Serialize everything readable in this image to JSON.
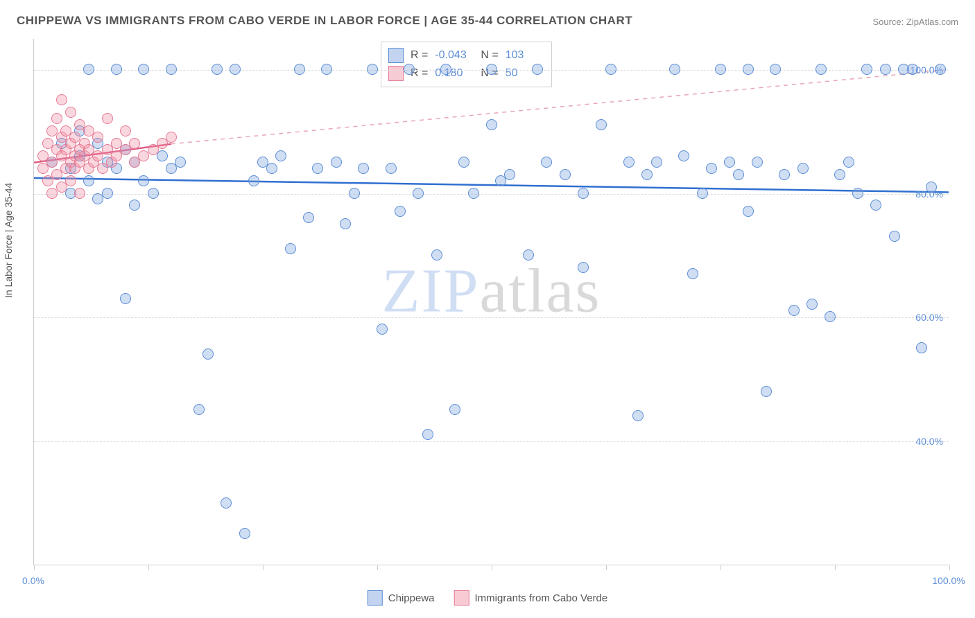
{
  "title": "CHIPPEWA VS IMMIGRANTS FROM CABO VERDE IN LABOR FORCE | AGE 35-44 CORRELATION CHART",
  "source": "Source: ZipAtlas.com",
  "y_axis_label": "In Labor Force | Age 35-44",
  "watermark": {
    "part1": "ZIP",
    "part2": "atlas"
  },
  "chart": {
    "type": "scatter",
    "background_color": "#ffffff",
    "grid_color": "#dddddd",
    "xlim": [
      0,
      100
    ],
    "ylim": [
      20,
      105
    ],
    "y_ticks": [
      {
        "value": 40,
        "label": "40.0%"
      },
      {
        "value": 60,
        "label": "60.0%"
      },
      {
        "value": 80,
        "label": "80.0%"
      },
      {
        "value": 100,
        "label": "100.0%"
      }
    ],
    "x_ticks": [
      {
        "value": 0,
        "label": "0.0%"
      },
      {
        "value": 12.5,
        "label": ""
      },
      {
        "value": 25,
        "label": ""
      },
      {
        "value": 37.5,
        "label": ""
      },
      {
        "value": 50,
        "label": ""
      },
      {
        "value": 62.5,
        "label": ""
      },
      {
        "value": 75,
        "label": ""
      },
      {
        "value": 87.5,
        "label": ""
      },
      {
        "value": 100,
        "label": "100.0%"
      }
    ],
    "series": [
      {
        "name": "Chippewa",
        "color_fill": "rgba(120,160,220,0.35)",
        "color_stroke": "#5b8dd6",
        "marker_class": "pt-blue",
        "R": "-0.043",
        "N": "103",
        "trend": {
          "x1": 0,
          "y1": 82.5,
          "x2": 100,
          "y2": 80.2,
          "color": "#2f6fd0",
          "width": 2.5,
          "dash": "none"
        },
        "points": [
          [
            2,
            85
          ],
          [
            3,
            88
          ],
          [
            4,
            80
          ],
          [
            4,
            84
          ],
          [
            5,
            86
          ],
          [
            5,
            90
          ],
          [
            6,
            100
          ],
          [
            6,
            82
          ],
          [
            7,
            88
          ],
          [
            7,
            79
          ],
          [
            8,
            85
          ],
          [
            8,
            80
          ],
          [
            9,
            100
          ],
          [
            9,
            84
          ],
          [
            10,
            87
          ],
          [
            10,
            63
          ],
          [
            11,
            85
          ],
          [
            11,
            78
          ],
          [
            12,
            100
          ],
          [
            12,
            82
          ],
          [
            13,
            80
          ],
          [
            14,
            86
          ],
          [
            15,
            100
          ],
          [
            15,
            84
          ],
          [
            16,
            85
          ],
          [
            18,
            45
          ],
          [
            19,
            54
          ],
          [
            20,
            100
          ],
          [
            21,
            30
          ],
          [
            22,
            100
          ],
          [
            23,
            25
          ],
          [
            24,
            82
          ],
          [
            25,
            85
          ],
          [
            26,
            84
          ],
          [
            27,
            86
          ],
          [
            28,
            71
          ],
          [
            29,
            100
          ],
          [
            30,
            76
          ],
          [
            31,
            84
          ],
          [
            32,
            100
          ],
          [
            33,
            85
          ],
          [
            34,
            75
          ],
          [
            35,
            80
          ],
          [
            36,
            84
          ],
          [
            37,
            100
          ],
          [
            38,
            58
          ],
          [
            39,
            84
          ],
          [
            40,
            77
          ],
          [
            41,
            100
          ],
          [
            42,
            80
          ],
          [
            43,
            41
          ],
          [
            44,
            70
          ],
          [
            45,
            100
          ],
          [
            46,
            45
          ],
          [
            47,
            85
          ],
          [
            48,
            80
          ],
          [
            50,
            100
          ],
          [
            50,
            91
          ],
          [
            51,
            82
          ],
          [
            52,
            83
          ],
          [
            54,
            70
          ],
          [
            55,
            100
          ],
          [
            56,
            85
          ],
          [
            58,
            83
          ],
          [
            60,
            80
          ],
          [
            60,
            68
          ],
          [
            62,
            91
          ],
          [
            63,
            100
          ],
          [
            65,
            85
          ],
          [
            66,
            44
          ],
          [
            67,
            83
          ],
          [
            68,
            85
          ],
          [
            70,
            100
          ],
          [
            71,
            86
          ],
          [
            72,
            67
          ],
          [
            73,
            80
          ],
          [
            74,
            84
          ],
          [
            75,
            100
          ],
          [
            76,
            85
          ],
          [
            77,
            83
          ],
          [
            78,
            100
          ],
          [
            78,
            77
          ],
          [
            79,
            85
          ],
          [
            80,
            48
          ],
          [
            81,
            100
          ],
          [
            82,
            83
          ],
          [
            83,
            61
          ],
          [
            84,
            84
          ],
          [
            85,
            62
          ],
          [
            86,
            100
          ],
          [
            87,
            60
          ],
          [
            88,
            83
          ],
          [
            89,
            85
          ],
          [
            90,
            80
          ],
          [
            91,
            100
          ],
          [
            92,
            78
          ],
          [
            93,
            100
          ],
          [
            94,
            73
          ],
          [
            95,
            100
          ],
          [
            96,
            100
          ],
          [
            97,
            55
          ],
          [
            98,
            81
          ],
          [
            99,
            100
          ]
        ]
      },
      {
        "name": "Immigrants from Cabo Verde",
        "color_fill": "rgba(240,140,160,0.35)",
        "color_stroke": "#e57a94",
        "marker_class": "pt-pink",
        "R": "0.180",
        "N": "50",
        "trend_solid": {
          "x1": 0,
          "y1": 85,
          "x2": 15,
          "y2": 88,
          "color": "#e05a85",
          "width": 2.5
        },
        "trend_dashed": {
          "x1": 15,
          "y1": 88,
          "x2": 100,
          "y2": 100,
          "color": "#e8a5b5",
          "width": 1.5
        },
        "points": [
          [
            1,
            84
          ],
          [
            1,
            86
          ],
          [
            1.5,
            88
          ],
          [
            1.5,
            82
          ],
          [
            2,
            90
          ],
          [
            2,
            85
          ],
          [
            2,
            80
          ],
          [
            2.5,
            87
          ],
          [
            2.5,
            92
          ],
          [
            2.5,
            83
          ],
          [
            3,
            95
          ],
          [
            3,
            86
          ],
          [
            3,
            81
          ],
          [
            3,
            89
          ],
          [
            3.5,
            84
          ],
          [
            3.5,
            87
          ],
          [
            3.5,
            90
          ],
          [
            4,
            85
          ],
          [
            4,
            88
          ],
          [
            4,
            82
          ],
          [
            4,
            93
          ],
          [
            4.5,
            86
          ],
          [
            4.5,
            84
          ],
          [
            4.5,
            89
          ],
          [
            5,
            87
          ],
          [
            5,
            85
          ],
          [
            5,
            91
          ],
          [
            5,
            80
          ],
          [
            5.5,
            86
          ],
          [
            5.5,
            88
          ],
          [
            6,
            84
          ],
          [
            6,
            90
          ],
          [
            6,
            87
          ],
          [
            6.5,
            85
          ],
          [
            7,
            89
          ],
          [
            7,
            86
          ],
          [
            7.5,
            84
          ],
          [
            8,
            92
          ],
          [
            8,
            87
          ],
          [
            8.5,
            85
          ],
          [
            9,
            86
          ],
          [
            9,
            88
          ],
          [
            10,
            87
          ],
          [
            10,
            90
          ],
          [
            11,
            85
          ],
          [
            11,
            88
          ],
          [
            12,
            86
          ],
          [
            13,
            87
          ],
          [
            14,
            88
          ],
          [
            15,
            89
          ]
        ]
      }
    ]
  },
  "stats_labels": {
    "R": "R =",
    "N": "N ="
  },
  "legend": {
    "items": [
      {
        "swatch": "sw-blue",
        "label": "Chippewa"
      },
      {
        "swatch": "sw-pink",
        "label": "Immigrants from Cabo Verde"
      }
    ]
  }
}
